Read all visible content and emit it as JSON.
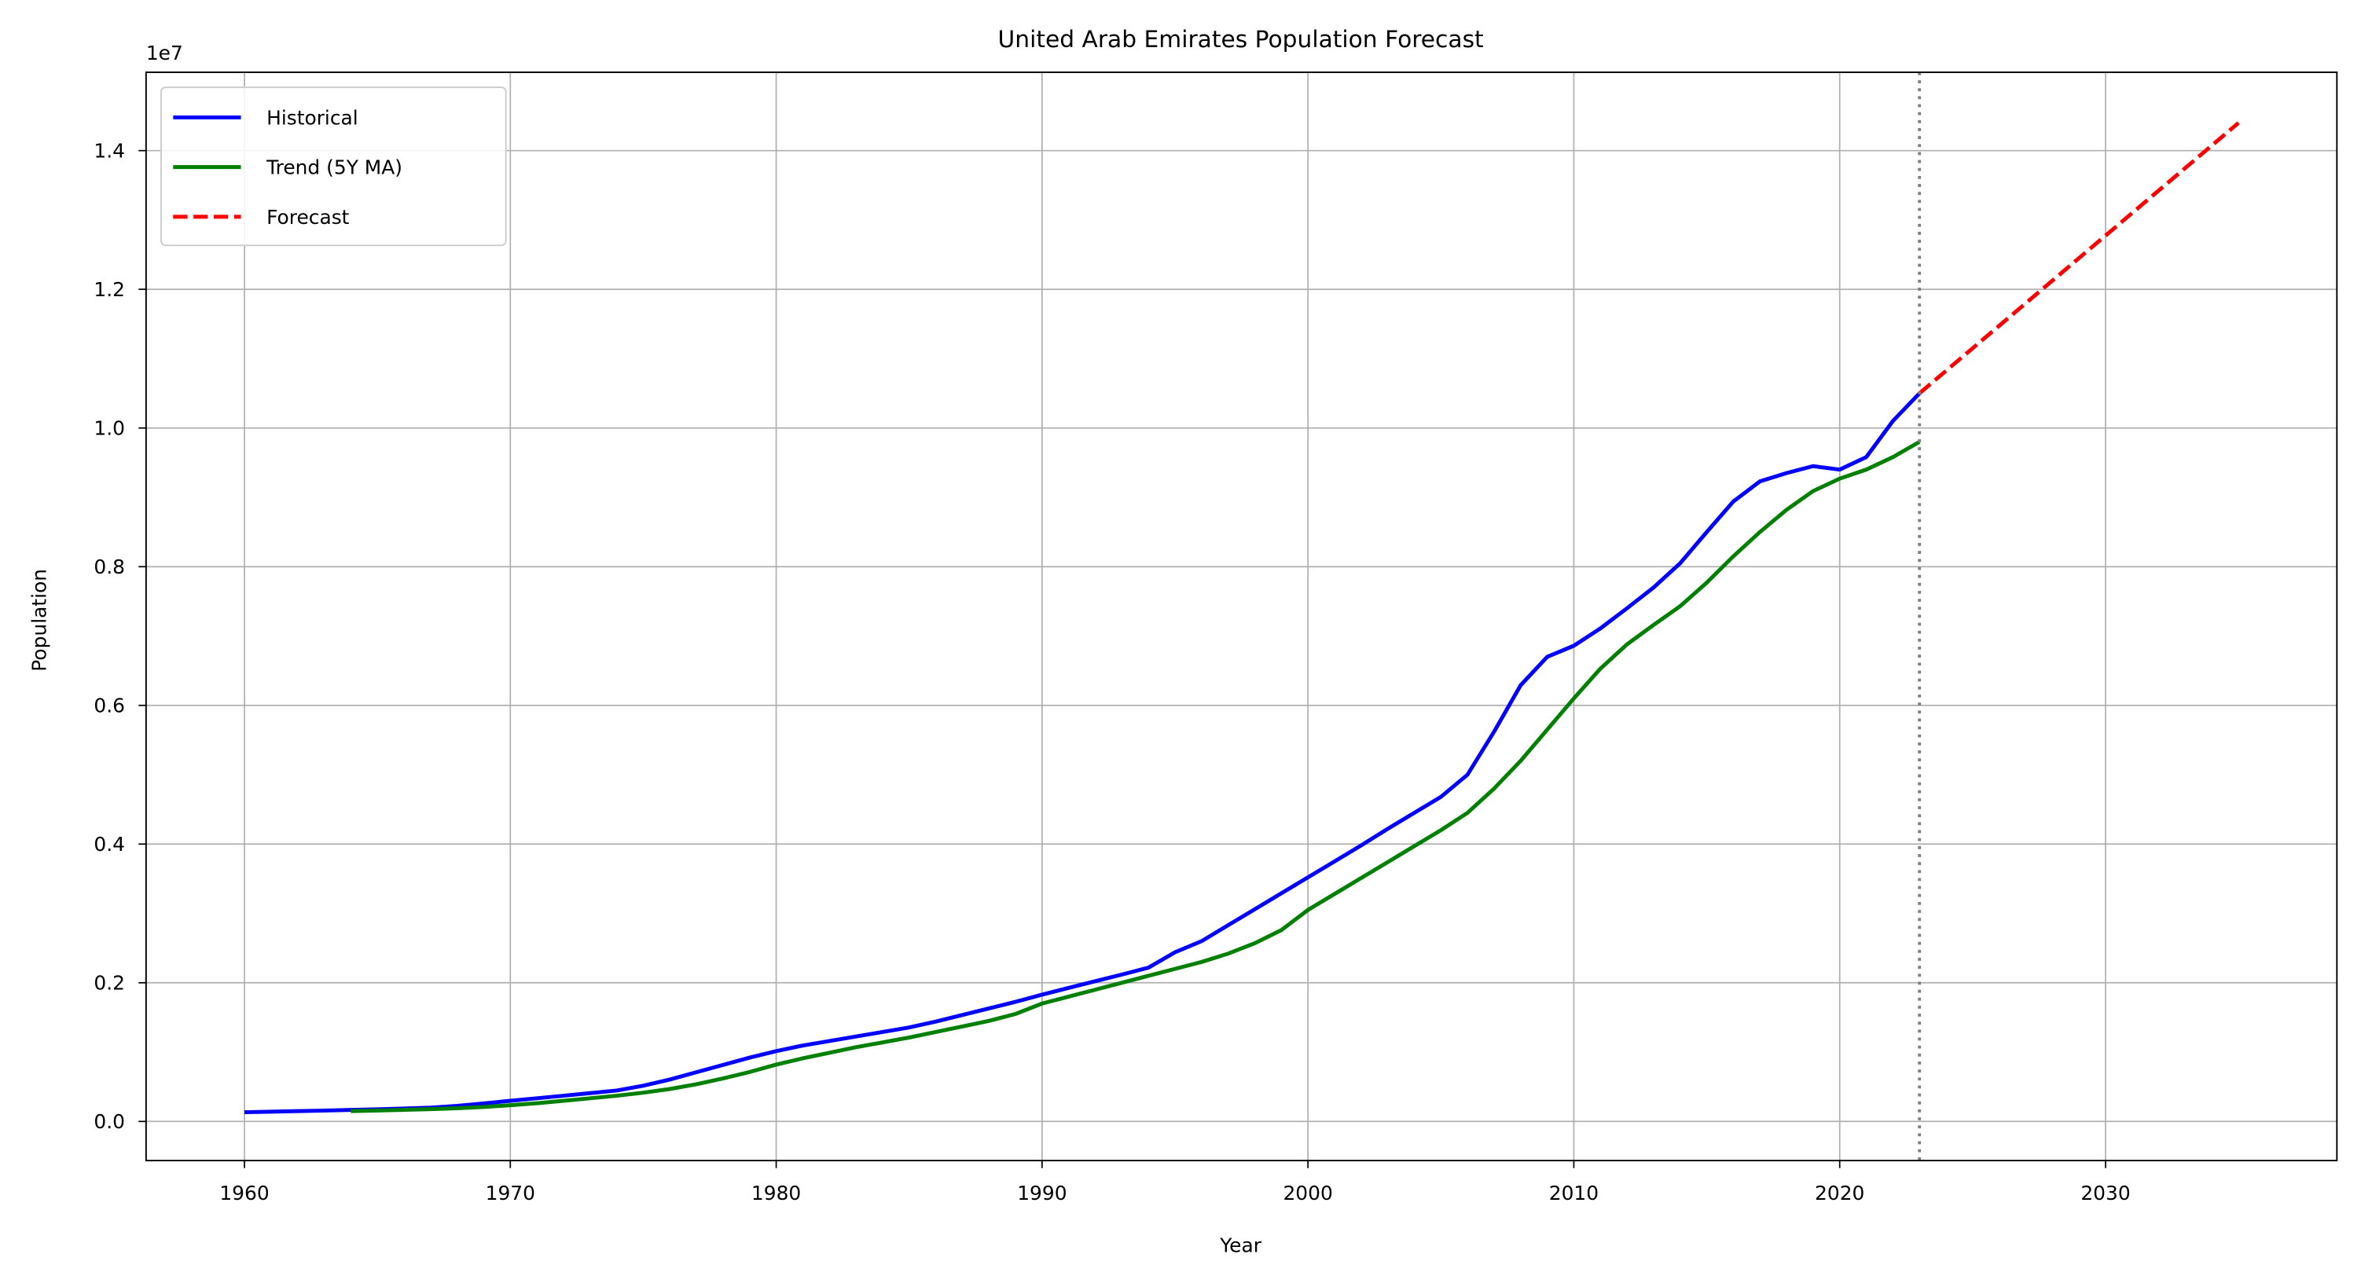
{
  "chart_data": {
    "type": "line",
    "title": "United Arab Emirates Population Forecast",
    "x_label": "Year",
    "y_label": "Population",
    "y_offset_label": "1e7",
    "xlim": [
      1956.3,
      2038.7
    ],
    "ylim": [
      -564000,
      15130000
    ],
    "xticks": [
      1960,
      1970,
      1980,
      1990,
      2000,
      2010,
      2020,
      2030
    ],
    "yticks": [
      {
        "value": 0,
        "label": "0.0"
      },
      {
        "value": 2000000,
        "label": "0.2"
      },
      {
        "value": 4000000,
        "label": "0.4"
      },
      {
        "value": 6000000,
        "label": "0.6"
      },
      {
        "value": 8000000,
        "label": "0.8"
      },
      {
        "value": 10000000,
        "label": "1.0"
      },
      {
        "value": 12000000,
        "label": "1.2"
      },
      {
        "value": 14000000,
        "label": "1.4"
      }
    ],
    "grid": true,
    "legend": "upper-left",
    "vline": {
      "x": 2023,
      "color": "#808080"
    },
    "series": [
      {
        "name": "Historical",
        "color": "#0000ff",
        "linestyle": "solid",
        "x": [
          1960,
          1961,
          1962,
          1963,
          1964,
          1965,
          1966,
          1967,
          1968,
          1969,
          1970,
          1971,
          1972,
          1973,
          1974,
          1975,
          1976,
          1977,
          1978,
          1979,
          1980,
          1981,
          1982,
          1983,
          1984,
          1985,
          1986,
          1987,
          1988,
          1989,
          1990,
          1991,
          1992,
          1993,
          1994,
          1995,
          1996,
          1997,
          1998,
          1999,
          2000,
          2001,
          2002,
          2003,
          2004,
          2005,
          2006,
          2007,
          2008,
          2009,
          2010,
          2011,
          2012,
          2013,
          2014,
          2015,
          2016,
          2017,
          2018,
          2019,
          2020,
          2021,
          2022,
          2023
        ],
        "values": [
          133000,
          141000,
          149000,
          157000,
          166000,
          175000,
          186000,
          199000,
          225000,
          260000,
          298000,
          334000,
          371000,
          408000,
          446000,
          515000,
          605000,
          710000,
          815000,
          920000,
          1014000,
          1095000,
          1160000,
          1225000,
          1290000,
          1355000,
          1440000,
          1535000,
          1630000,
          1725000,
          1828000,
          1926000,
          2022000,
          2118000,
          2218000,
          2440000,
          2600000,
          2830000,
          3060000,
          3290000,
          3520000,
          3750000,
          3980000,
          4220000,
          4450000,
          4680000,
          5000000,
          5620000,
          6290000,
          6700000,
          6860000,
          7110000,
          7400000,
          7700000,
          8050000,
          8500000,
          8940000,
          9230000,
          9350000,
          9450000,
          9400000,
          9580000,
          10100000,
          10500000
        ]
      },
      {
        "name": "Trend (5Y MA)",
        "color": "#008000",
        "linestyle": "solid",
        "x": [
          1964,
          1965,
          1966,
          1967,
          1968,
          1969,
          1970,
          1971,
          1972,
          1973,
          1974,
          1975,
          1976,
          1977,
          1978,
          1979,
          1980,
          1981,
          1982,
          1983,
          1984,
          1985,
          1986,
          1987,
          1988,
          1989,
          1990,
          1991,
          1992,
          1993,
          1994,
          1995,
          1996,
          1997,
          1998,
          1999,
          2000,
          2001,
          2002,
          2003,
          2004,
          2005,
          2006,
          2007,
          2008,
          2009,
          2010,
          2011,
          2012,
          2013,
          2014,
          2015,
          2016,
          2017,
          2018,
          2019,
          2020,
          2021,
          2022,
          2023
        ],
        "values": [
          149000,
          157000,
          167000,
          177000,
          190000,
          209000,
          234000,
          263000,
          298000,
          334000,
          371000,
          415000,
          468000,
          537000,
          620000,
          713000,
          820000,
          910000,
          990000,
          1070000,
          1140000,
          1210000,
          1290000,
          1370000,
          1450000,
          1550000,
          1700000,
          1800000,
          1900000,
          2000000,
          2100000,
          2200000,
          2300000,
          2420000,
          2570000,
          2760000,
          3050000,
          3280000,
          3510000,
          3740000,
          3970000,
          4200000,
          4450000,
          4800000,
          5200000,
          5650000,
          6100000,
          6530000,
          6880000,
          7160000,
          7430000,
          7770000,
          8150000,
          8500000,
          8820000,
          9090000,
          9270000,
          9400000,
          9580000,
          9800000
        ]
      },
      {
        "name": "Forecast",
        "color": "#ff0000",
        "linestyle": "dashed",
        "x": [
          2023,
          2024,
          2025,
          2026,
          2027,
          2028,
          2029,
          2030,
          2031,
          2032,
          2033,
          2034,
          2035
        ],
        "values": [
          10500000,
          10825000,
          11150000,
          11475000,
          11800000,
          12125000,
          12450000,
          12775000,
          13100000,
          13425000,
          13750000,
          14075000,
          14400000
        ]
      }
    ]
  }
}
